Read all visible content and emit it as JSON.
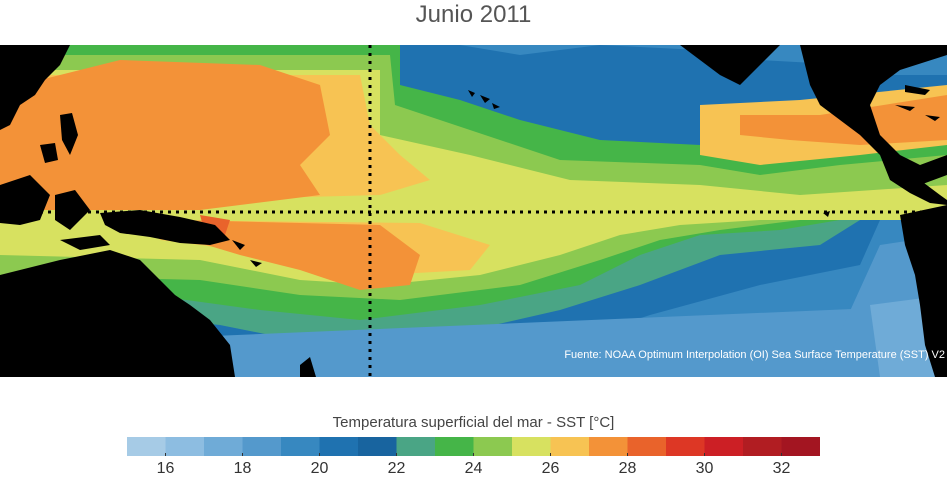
{
  "title": "Junio 2011",
  "source": "Fuente: NOAA Optimum Interpolation (OI) Sea Surface Temperature (SST) V2",
  "colorbar": {
    "title": "Temperatura superficial del mar - SST  [°C]",
    "min": 15,
    "max": 33,
    "step": 1,
    "tick_values": [
      16,
      18,
      20,
      22,
      24,
      26,
      28,
      30,
      32
    ],
    "tick_labels": [
      "16",
      "18",
      "20",
      "22",
      "24",
      "26",
      "28",
      "30",
      "32"
    ],
    "colors": [
      "#a6cbe6",
      "#8dbde1",
      "#6fabd7",
      "#5499cc",
      "#3788c0",
      "#1f72b0",
      "#18649f",
      "#4aa585",
      "#45b548",
      "#8cc950",
      "#d7e160",
      "#f7c353",
      "#f39238",
      "#e9632b",
      "#dd3725",
      "#cc1f25",
      "#b11d22",
      "#a31521"
    ]
  },
  "map": {
    "land_color": "#000000",
    "grid_line_color": "#000000"
  }
}
